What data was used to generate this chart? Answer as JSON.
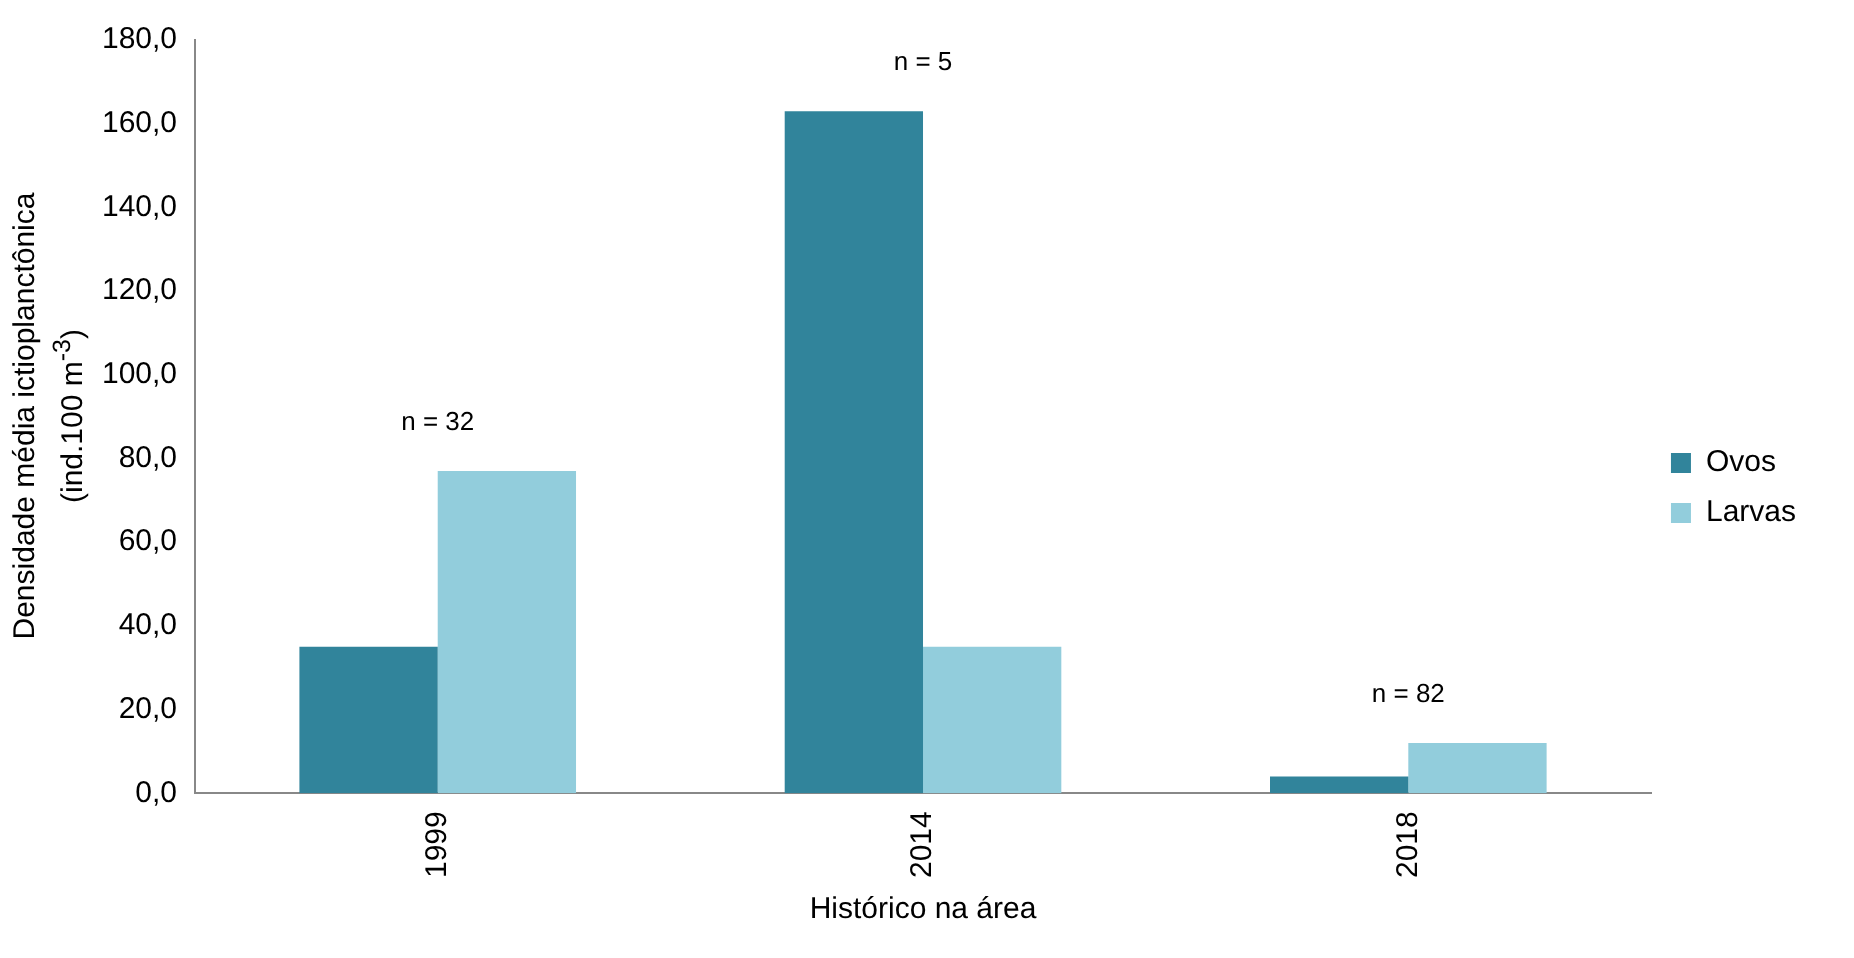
{
  "chart_data": {
    "type": "bar",
    "xlabel": "Histórico na área",
    "ylabel": "Densidade média ictioplanctônica (ind.100 m$^{-3}$)",
    "categories": [
      "1999",
      "2014",
      "2018"
    ],
    "series": [
      {
        "name": "Ovos",
        "color": "#31849b",
        "values": [
          35,
          163,
          4
        ]
      },
      {
        "name": "Larvas",
        "color": "#92cddc",
        "values": [
          77,
          35,
          12
        ]
      }
    ],
    "ylim": [
      0,
      180
    ],
    "yticks": [
      {
        "value": 0,
        "label": "0,0"
      },
      {
        "value": 20,
        "label": "20,0"
      },
      {
        "value": 40,
        "label": "40,0"
      },
      {
        "value": 60,
        "label": "60,0"
      },
      {
        "value": 80,
        "label": "80,0"
      },
      {
        "value": 100,
        "label": "100,0"
      },
      {
        "value": 120,
        "label": "120,0"
      },
      {
        "value": 140,
        "label": "140,0"
      },
      {
        "value": 160,
        "label": "160,0"
      },
      {
        "value": 180,
        "label": "180,0"
      }
    ],
    "annotations": [
      "n = 32",
      "n = 5",
      "n = 82"
    ],
    "grid": false,
    "legend": "right"
  }
}
